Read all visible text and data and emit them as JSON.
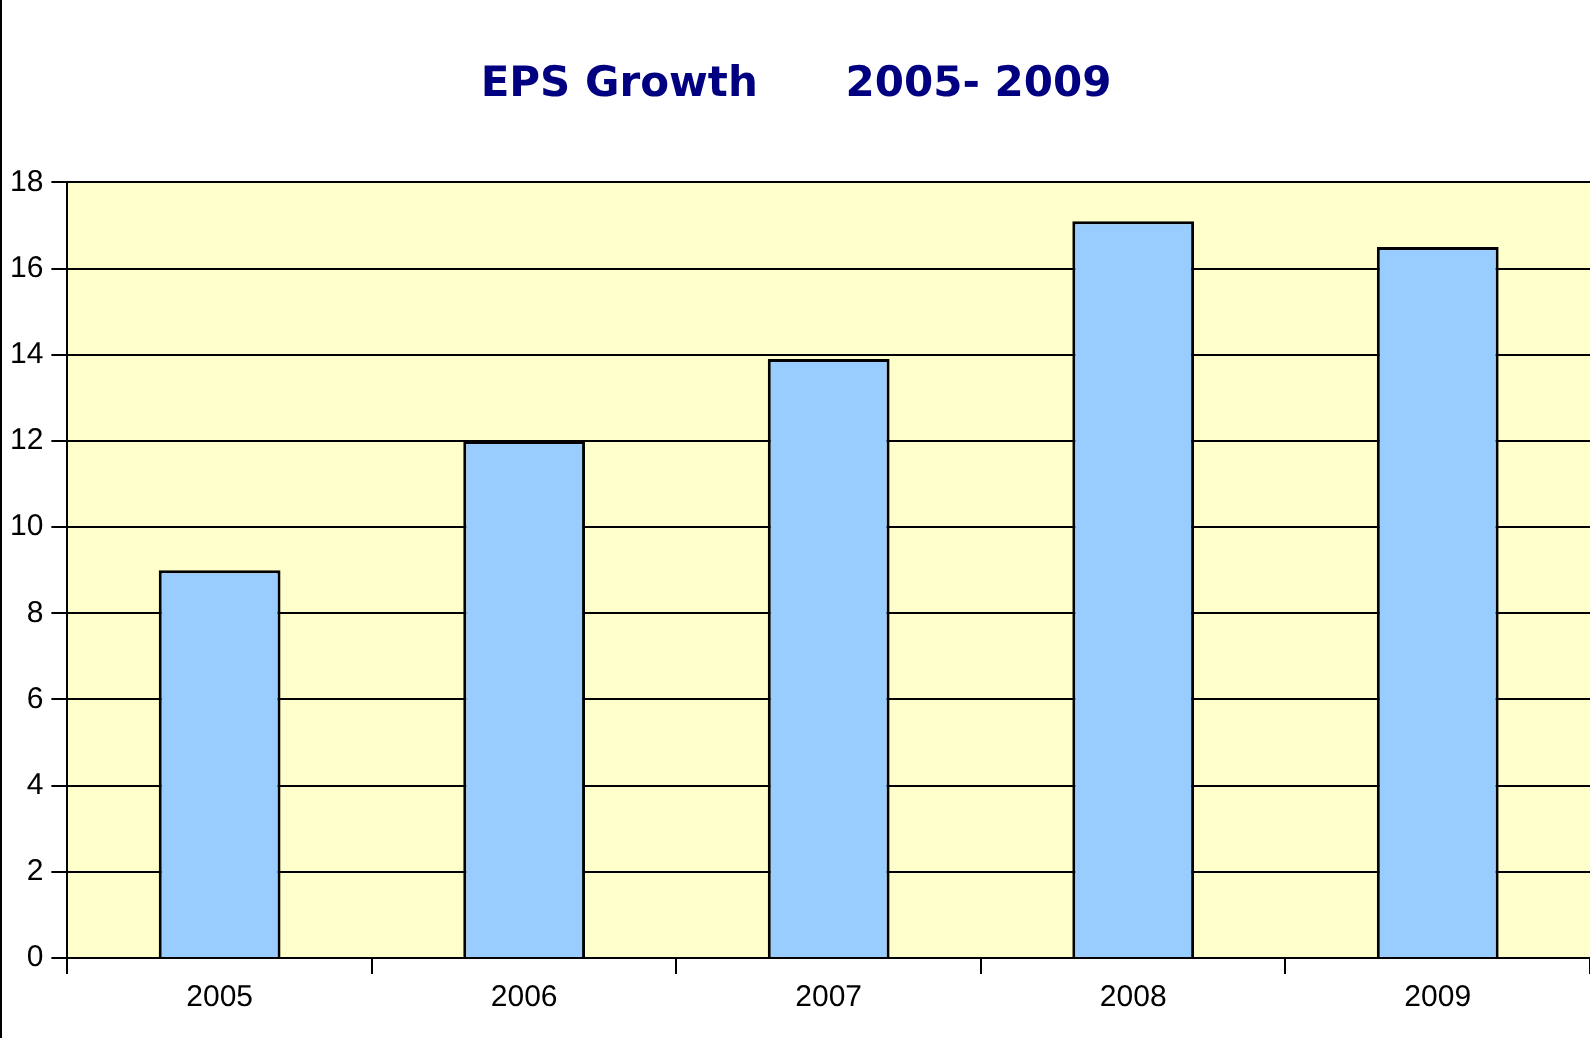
{
  "chart_data": {
    "type": "bar",
    "title": "EPS Growth      2005- 2009",
    "categories": [
      "2005",
      "2006",
      "2007",
      "2008",
      "2009"
    ],
    "values": [
      9,
      12,
      13.9,
      17.1,
      16.5
    ],
    "color": "#99ccff",
    "ylim": [
      0,
      18
    ],
    "yticks": [
      0,
      2,
      4,
      6,
      8,
      10,
      12,
      14,
      16,
      18
    ],
    "grid": "y",
    "legend": false
  }
}
